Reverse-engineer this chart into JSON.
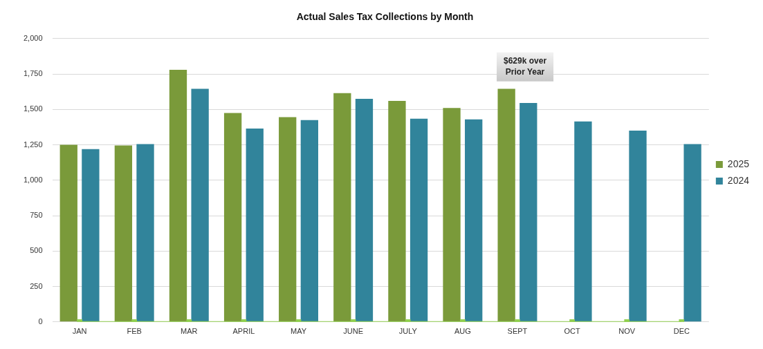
{
  "chart_data": {
    "type": "bar",
    "title": "Actual Sales Tax Collections by Month",
    "categories": [
      "JAN",
      "FEB",
      "MAR",
      "APRIL",
      "MAY",
      "JUNE",
      "JULY",
      "AUG",
      "SEPT",
      "OCT",
      "NOV",
      "DEC"
    ],
    "series": [
      {
        "name": "2025",
        "color": "#7a9a3a",
        "values": [
          1250,
          1245,
          1780,
          1475,
          1445,
          1615,
          1560,
          1510,
          1645,
          null,
          null,
          null
        ]
      },
      {
        "name": "2024",
        "color": "#31849b",
        "values": [
          1220,
          1255,
          1645,
          1365,
          1425,
          1575,
          1435,
          1430,
          1545,
          1415,
          1350,
          1255
        ]
      },
      {
        "type": "line",
        "color": "#92d050",
        "marker": "square",
        "values": [
          0,
          0,
          0,
          0,
          0,
          0,
          0,
          0,
          0,
          0,
          0,
          0
        ]
      }
    ],
    "ylim": [
      0,
      2000
    ],
    "yticks": [
      {
        "value": 0,
        "label": "0"
      },
      {
        "value": 250,
        "label": "250"
      },
      {
        "value": 500,
        "label": "500"
      },
      {
        "value": 750,
        "label": "750"
      },
      {
        "value": 1000,
        "label": "1,000"
      },
      {
        "value": 1250,
        "label": "1,250"
      },
      {
        "value": 1500,
        "label": "1,500"
      },
      {
        "value": 1750,
        "label": "1,750"
      },
      {
        "value": 2000,
        "label": "2,000"
      }
    ],
    "annotations": [
      "$629k over\nPrior Year"
    ],
    "grid": "y",
    "legend": "right"
  }
}
